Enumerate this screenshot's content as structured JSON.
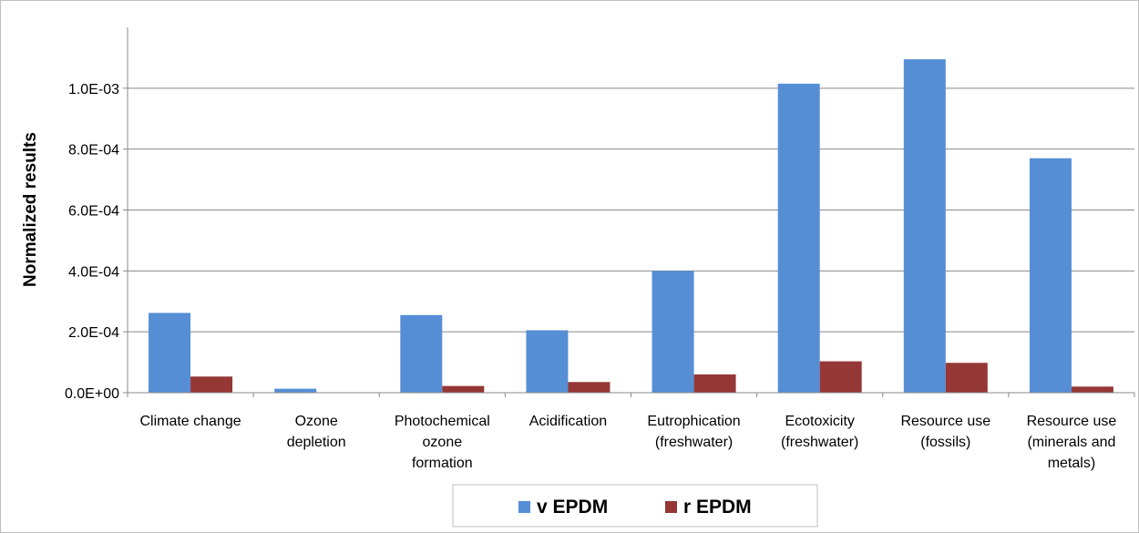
{
  "chart_data": {
    "type": "bar",
    "title": "",
    "xlabel": "",
    "ylabel": "Normalized results",
    "ylim": [
      0,
      0.0012
    ],
    "yticks": [
      0,
      0.0002,
      0.0004,
      0.0006,
      0.0008,
      0.001
    ],
    "ytick_labels": [
      "0.0E+00",
      "2.0E-04",
      "4.0E-04",
      "6.0E-04",
      "8.0E-04",
      "1.0E-03"
    ],
    "grid": true,
    "legend_position": "bottom",
    "categories": [
      [
        "Climate change"
      ],
      [
        "Ozone",
        "depletion"
      ],
      [
        "Photochemical",
        "ozone",
        "formation"
      ],
      [
        "Acidification"
      ],
      [
        "Eutrophication",
        "(freshwater)"
      ],
      [
        "Ecotoxicity",
        "(freshwater)"
      ],
      [
        "Resource use",
        "(fossils)"
      ],
      [
        "Resource use",
        "(minerals and",
        "metals)"
      ]
    ],
    "series": [
      {
        "name": "v EPDM",
        "color": "#558ED5",
        "values": [
          0.000262,
          1.3e-05,
          0.000255,
          0.000205,
          0.0004,
          0.001015,
          0.001095,
          0.00077
        ]
      },
      {
        "name": "r EPDM",
        "color": "#953735",
        "values": [
          5.3e-05,
          0.0,
          2.2e-05,
          3.5e-05,
          6e-05,
          0.000103,
          9.8e-05,
          2e-05
        ]
      }
    ]
  }
}
